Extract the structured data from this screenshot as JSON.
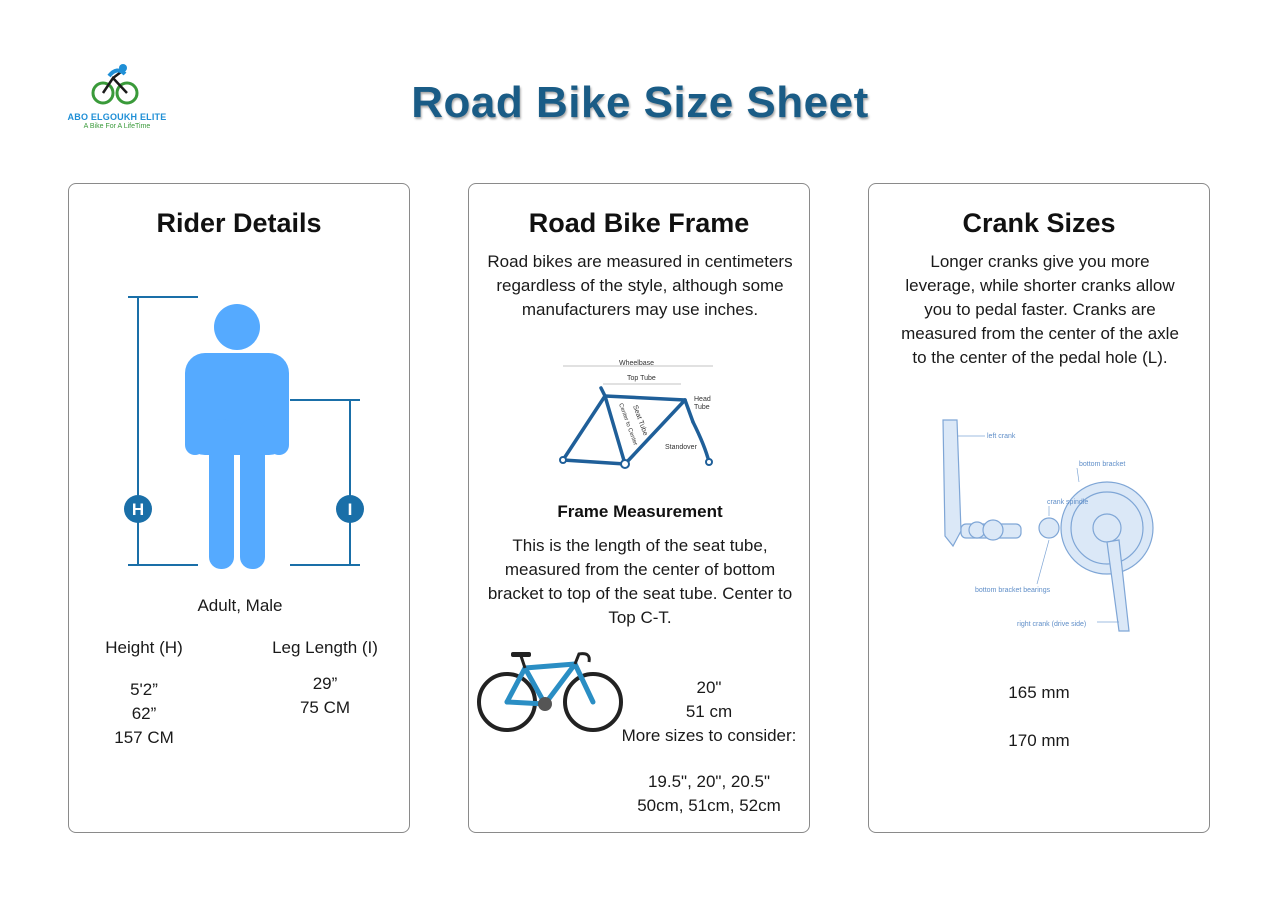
{
  "logo": {
    "name": "ABO ELGOUKH ELITE",
    "tagline": "A Bike For A LifeTime"
  },
  "title": "Road Bike Size Sheet",
  "rider": {
    "heading": "Rider Details",
    "h_marker": "H",
    "i_marker": "I",
    "profile": "Adult, Male",
    "height_label": "Height (H)",
    "leg_label": "Leg Length (I)",
    "height_values": [
      "5'2”",
      "62”",
      "157 CM"
    ],
    "leg_values": [
      "29”",
      "75 CM"
    ]
  },
  "frame": {
    "heading": "Road Bike Frame",
    "description": "Road bikes are measured in centimeters regardless of the style, although some manufacturers may use inches.",
    "diagram_labels": {
      "wheelbase": "Wheelbase",
      "top_tube": "Top Tube",
      "head_tube": "Head",
      "head_tube2": "Tube",
      "seat_tube": "Seat Tube",
      "center": "Center to Center",
      "standover": "Standover"
    },
    "measurement_heading": "Frame Measurement",
    "measurement_text": "This is the length of the seat tube, measured from the center of bottom bracket to top of the seat tube. Center to Top C-T.",
    "size_inch": "20\"",
    "size_cm": "51 cm",
    "more_label": "More sizes to consider:",
    "more_inch": "19.5\", 20\", 20.5\"",
    "more_cm": "50cm, 51cm, 52cm"
  },
  "crank": {
    "heading": "Crank Sizes",
    "description": "Longer cranks give you more leverage, while shorter cranks allow you to pedal faster. Cranks are measured from the center of the axle to the center of the pedal hole (L).",
    "diagram_labels": {
      "left_crank": "left crank",
      "bottom_bracket": "bottom bracket",
      "spindle": "crank spindle",
      "bearings": "bottom bracket bearings",
      "right_crank": "right crank (drive side)"
    },
    "size_1": "165 mm",
    "size_2": "170 mm"
  },
  "colors": {
    "accent": "#1a5c86",
    "figure": "#55aaff",
    "marker": "#1a6fa8",
    "card_border": "#8a8a8a"
  }
}
